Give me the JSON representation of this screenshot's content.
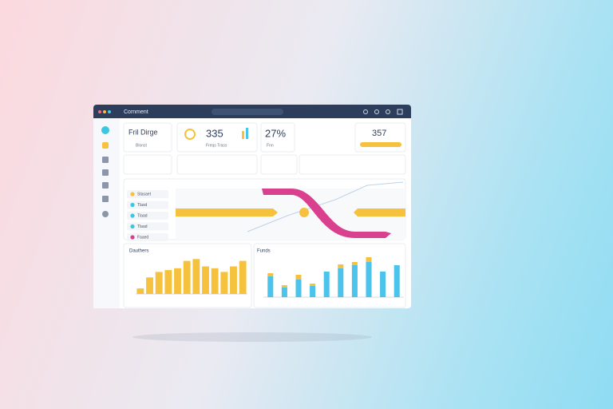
{
  "header": {
    "title": "Cornment"
  },
  "kpis": [
    {
      "label": "Fril Dirge",
      "sub": "Blonst"
    },
    {
      "value": "335",
      "sub": "Freqs Trass"
    },
    {
      "value": "27%",
      "sub": "Fnn"
    },
    {
      "value": "357"
    }
  ],
  "legend": [
    {
      "label": "Stasaet",
      "color": "#f6c23e"
    },
    {
      "label": "Tlasd",
      "color": "#3cc6e0"
    },
    {
      "label": "Tlaad",
      "color": "#3cc6e0"
    },
    {
      "label": "Tlaad",
      "color": "#3cc6e0"
    },
    {
      "label": "Faaed",
      "color": "#d9418f"
    }
  ],
  "charts": [
    {
      "type": "bar",
      "title": "Dauthers",
      "color": "#f6c23e",
      "ylim": [
        0,
        40
      ],
      "values": [
        6,
        18,
        24,
        26,
        28,
        36,
        38,
        30,
        28,
        24,
        30,
        36
      ]
    },
    {
      "type": "stacked-bar",
      "title": "Funds",
      "ylim": [
        0,
        50
      ],
      "series": [
        {
          "color": "#4cc3ea",
          "values": [
            26,
            12,
            22,
            14,
            32,
            36,
            40,
            44,
            32,
            40
          ]
        },
        {
          "color": "#f6c23e",
          "values": [
            4,
            3,
            6,
            3,
            0,
            5,
            4,
            6,
            0,
            0
          ]
        }
      ]
    }
  ]
}
